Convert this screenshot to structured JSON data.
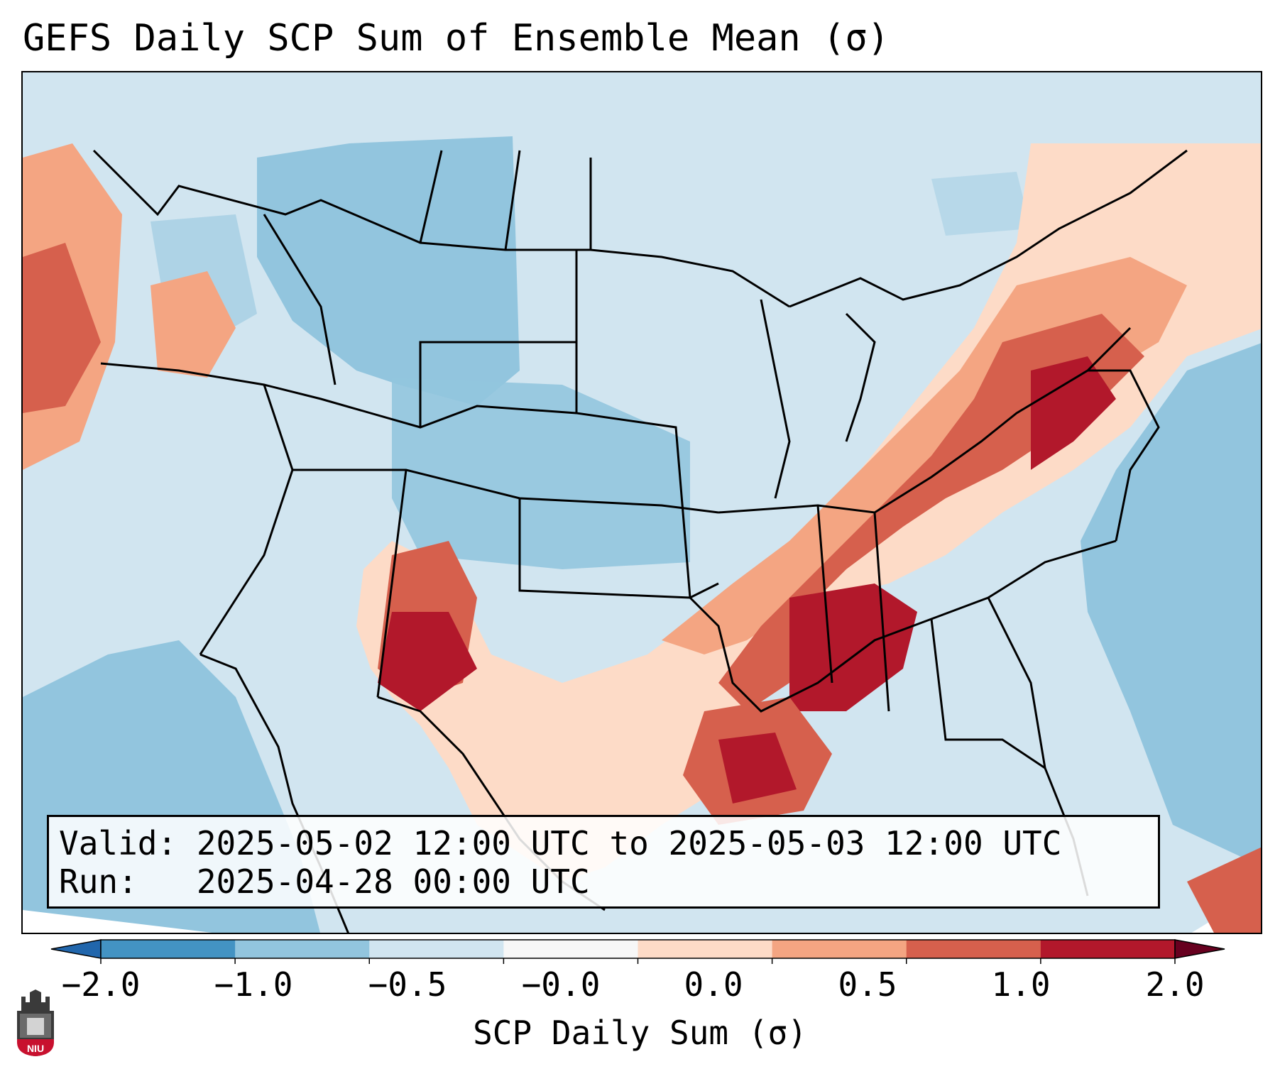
{
  "title": "GEFS Daily SCP Sum of Ensemble Mean (σ)",
  "info": {
    "valid_line": "Valid: 2025-05-02 12:00 UTC to 2025-05-03 12:00 UTC",
    "run_line": "Run:   2025-04-28 00:00 UTC"
  },
  "colorbar": {
    "label": "SCP Daily Sum (σ)",
    "ticks": [
      "−2.0",
      "−1.0",
      "−0.5",
      "−0.0",
      "0.0",
      "0.5",
      "1.0",
      "2.0"
    ],
    "colors": [
      "#4393c3",
      "#92c5de",
      "#d1e5f0",
      "#f7f7f7",
      "#fddbc7",
      "#f4a582",
      "#d6604d",
      "#b2182b"
    ],
    "extend": "both"
  },
  "map": {
    "region": "CONUS",
    "ocean_color": "#92c5de",
    "land_background": "#d1e5f0"
  },
  "logo": {
    "text": "NIU"
  }
}
